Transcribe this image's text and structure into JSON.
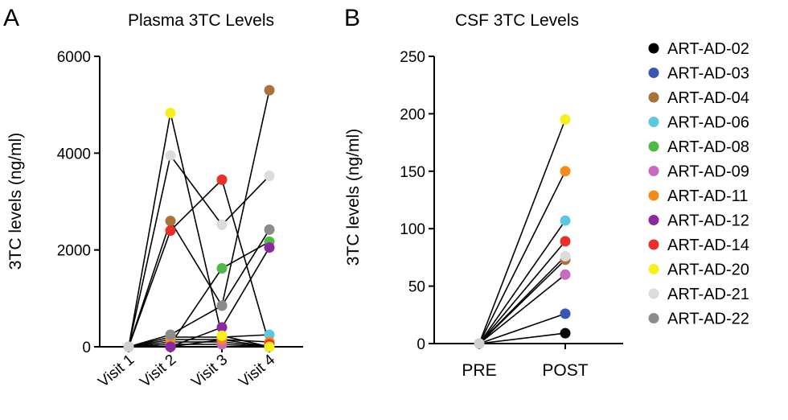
{
  "chart_data": [
    {
      "panel_letter": "A",
      "type": "scatter",
      "title": "Plasma 3TC Levels",
      "ylabel": "3TC levels (ng/ml)",
      "xlabel": "",
      "categories": [
        "Visit 1",
        "Visit 2",
        "Visit 3",
        "Visit 4"
      ],
      "ylim": [
        0,
        6000
      ],
      "yticks": [
        "0",
        "2000",
        "4000",
        "6000"
      ],
      "series": [
        {
          "name": "ART-AD-02",
          "values": [
            0,
            0,
            150,
            0
          ]
        },
        {
          "name": "ART-AD-03",
          "values": [
            0,
            100,
            100,
            0
          ]
        },
        {
          "name": "ART-AD-04",
          "values": [
            0,
            2600,
            850,
            5300
          ]
        },
        {
          "name": "ART-AD-06",
          "values": [
            0,
            200,
            200,
            250
          ]
        },
        {
          "name": "ART-AD-08",
          "values": [
            0,
            50,
            1620,
            2170
          ]
        },
        {
          "name": "ART-AD-09",
          "values": [
            0,
            50,
            50,
            0
          ]
        },
        {
          "name": "ART-AD-11",
          "values": [
            0,
            150,
            150,
            100
          ]
        },
        {
          "name": "ART-AD-12",
          "values": [
            0,
            0,
            400,
            2050
          ]
        },
        {
          "name": "ART-AD-14",
          "values": [
            0,
            2400,
            3450,
            50
          ]
        },
        {
          "name": "ART-AD-20",
          "values": [
            0,
            4830,
            230,
            0
          ]
        },
        {
          "name": "ART-AD-21",
          "values": [
            0,
            3950,
            2520,
            3530
          ]
        },
        {
          "name": "ART-AD-22",
          "values": [
            0,
            250,
            850,
            2420
          ]
        }
      ]
    },
    {
      "panel_letter": "B",
      "type": "scatter",
      "title": "CSF 3TC Levels",
      "ylabel": "3TC levels (ng/ml)",
      "xlabel": "",
      "categories": [
        "PRE",
        "POST"
      ],
      "ylim": [
        0,
        250
      ],
      "yticks": [
        "0",
        "50",
        "100",
        "150",
        "200",
        "250"
      ],
      "series": [
        {
          "name": "ART-AD-02",
          "values": [
            0,
            9
          ]
        },
        {
          "name": "ART-AD-03",
          "values": [
            0,
            26
          ]
        },
        {
          "name": "ART-AD-04",
          "values": [
            0,
            73
          ]
        },
        {
          "name": "ART-AD-09",
          "values": [
            0,
            60
          ]
        },
        {
          "name": "ART-AD-11",
          "values": [
            0,
            150
          ]
        },
        {
          "name": "ART-AD-14",
          "values": [
            0,
            89
          ]
        },
        {
          "name": "ART-AD-20",
          "values": [
            0,
            195
          ]
        },
        {
          "name": "ART-AD-21",
          "values": [
            0,
            76
          ]
        },
        {
          "name": "ART-AD-06",
          "values": [
            0,
            107
          ]
        }
      ]
    }
  ],
  "legend": {
    "placement": "right",
    "items": [
      {
        "label": "ART-AD-02",
        "color": "#000000"
      },
      {
        "label": "ART-AD-03",
        "color": "#3a56b0"
      },
      {
        "label": "ART-AD-04",
        "color": "#a8733a"
      },
      {
        "label": "ART-AD-06",
        "color": "#5bc8e0"
      },
      {
        "label": "ART-AD-08",
        "color": "#52b848"
      },
      {
        "label": "ART-AD-09",
        "color": "#c86ac0"
      },
      {
        "label": "ART-AD-11",
        "color": "#f28a1e"
      },
      {
        "label": "ART-AD-12",
        "color": "#8b2a9e"
      },
      {
        "label": "ART-AD-14",
        "color": "#e8302a"
      },
      {
        "label": "ART-AD-20",
        "color": "#f5f020"
      },
      {
        "label": "ART-AD-21",
        "color": "#dcdcdc"
      },
      {
        "label": "ART-AD-22",
        "color": "#8c8c8c"
      }
    ]
  },
  "baseline_point_color": "#cfcfcf"
}
